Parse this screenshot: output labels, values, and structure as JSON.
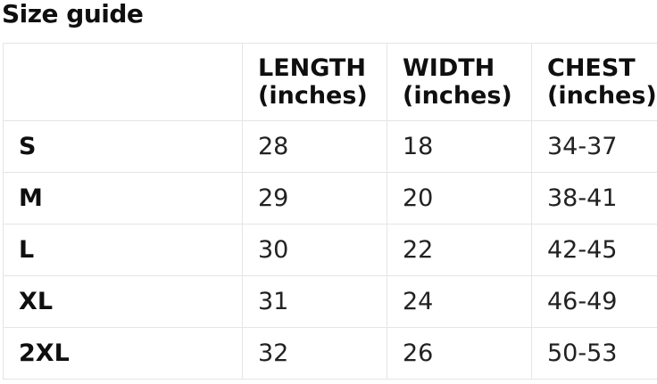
{
  "page": {
    "title": "Size guide"
  },
  "size_table": {
    "corner_label": "",
    "columns": [
      {
        "id": "length",
        "line1": "LENGTH",
        "line2": "(inches)"
      },
      {
        "id": "width",
        "line1": "WIDTH",
        "line2": "(inches)"
      },
      {
        "id": "chest",
        "line1": "CHEST",
        "line2": "(inches)"
      }
    ],
    "rows": [
      {
        "size": "S",
        "length": "28",
        "width": "18",
        "chest": "34-37"
      },
      {
        "size": "M",
        "length": "29",
        "width": "20",
        "chest": "38-41"
      },
      {
        "size": "L",
        "length": "30",
        "width": "22",
        "chest": "42-45"
      },
      {
        "size": "XL",
        "length": "31",
        "width": "24",
        "chest": "46-49"
      },
      {
        "size": "2XL",
        "length": "32",
        "width": "26",
        "chest": "50-53"
      }
    ]
  },
  "colors": {
    "border": "#e5e5e5",
    "text": "#222222",
    "heading": "#0f0f0f",
    "background": "#ffffff"
  }
}
